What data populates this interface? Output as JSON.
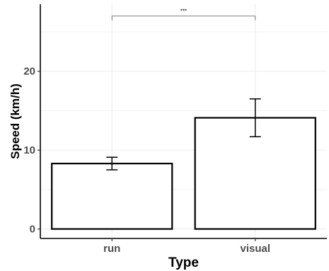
{
  "chart_data": {
    "type": "bar",
    "categories": [
      "run",
      "visual"
    ],
    "values": [
      8.3,
      14.1
    ],
    "error_low": [
      7.5,
      11.7
    ],
    "error_high": [
      9.1,
      16.5
    ],
    "xlabel": "Type",
    "ylabel": "Speed (km/h)",
    "ylim": [
      -1.2,
      28.5
    ],
    "yticks": [
      0,
      10,
      20
    ],
    "ytick_labels": [
      "0",
      "10",
      "20"
    ],
    "grid": true,
    "significance": {
      "from": "run",
      "to": "visual",
      "y": 27,
      "label": "***"
    }
  },
  "colors": {
    "bar_fill": "#ffffff",
    "bar_stroke": "#000000",
    "grid": "#ebebeb",
    "axis": "#000000",
    "tick_text": "#4d4d4d"
  }
}
